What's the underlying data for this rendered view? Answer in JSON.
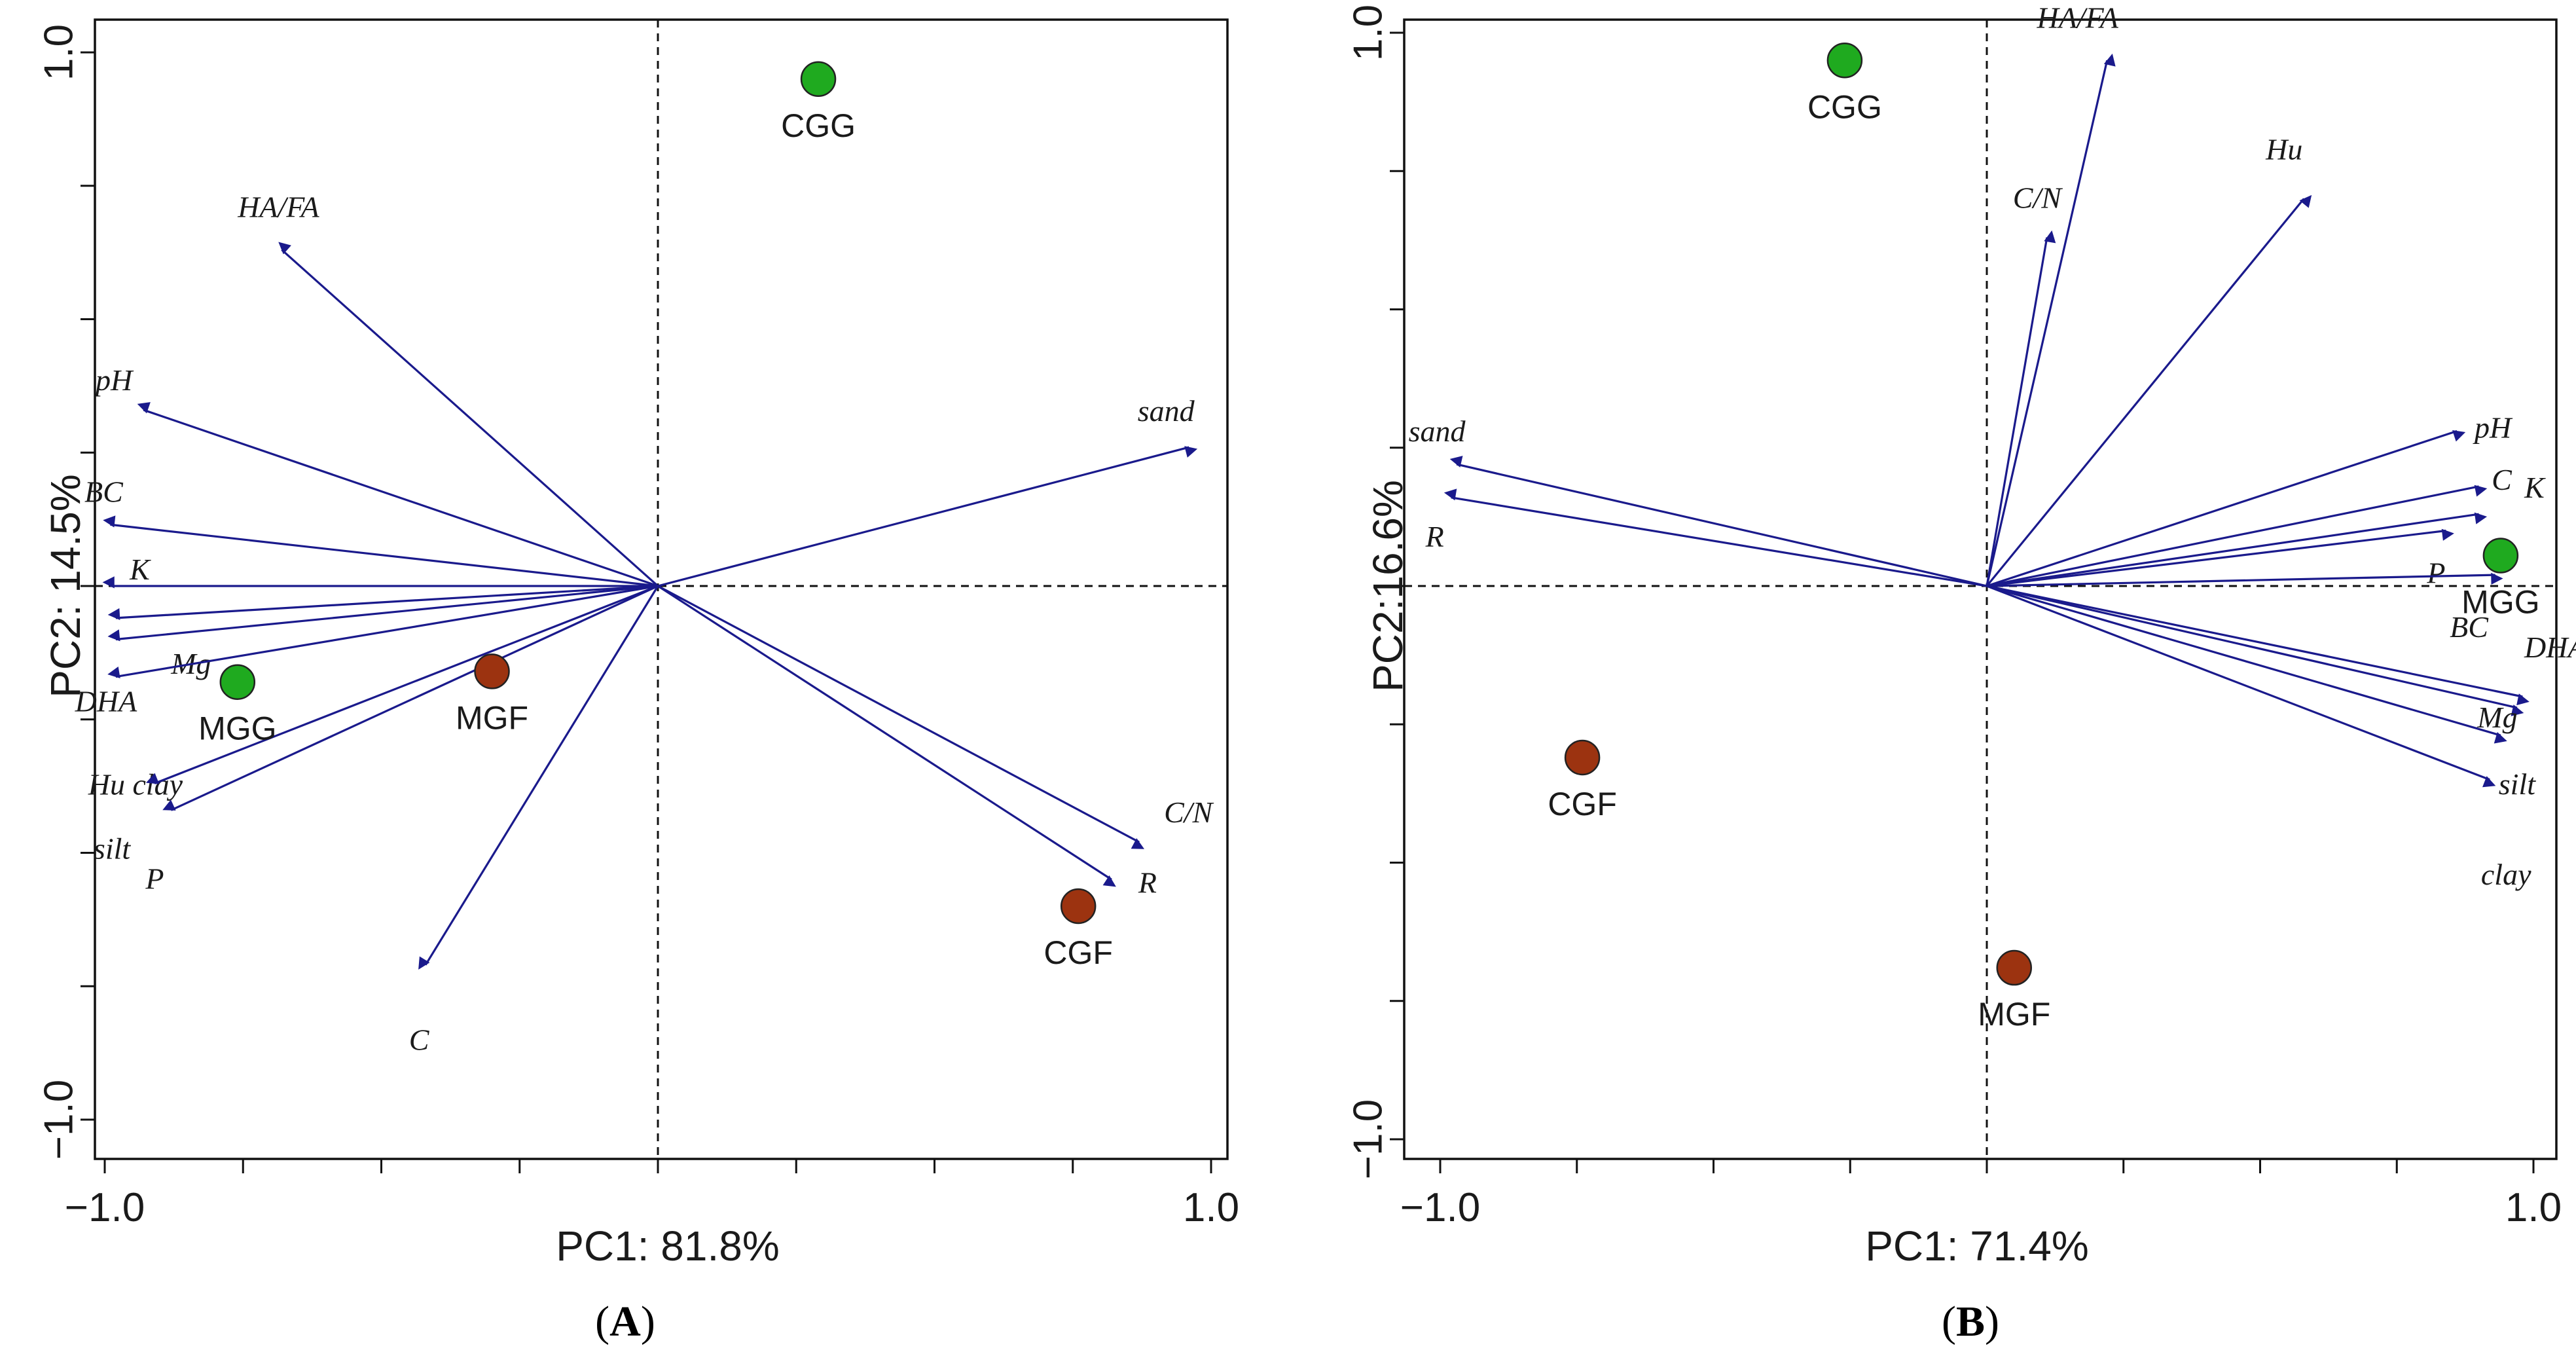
{
  "colors": {
    "arrow": "#1a1a8c",
    "site_green": "#1faa1f",
    "site_brown": "#9c3310",
    "frame": "#111111"
  },
  "chart_data": [
    {
      "type": "scatter",
      "subtype": "pca-biplot",
      "panel": "A",
      "xlabel": "PC1: 81.8%",
      "ylabel": "PC2: 14.5%",
      "xlim": [
        -1.0,
        1.0
      ],
      "ylim": [
        -1.0,
        1.0
      ],
      "x_ticks": [
        -1.0,
        1.0
      ],
      "y_ticks": [
        -1.0,
        1.0
      ],
      "x_tick_labels": [
        "−1.0",
        "1.0"
      ],
      "y_tick_labels": [
        "−1.0",
        "1.0"
      ],
      "vectors": [
        {
          "name": "HA/FA",
          "x": -0.68,
          "y": 0.63
        },
        {
          "name": "pH",
          "x": -0.93,
          "y": 0.33
        },
        {
          "name": "BC",
          "x": -0.99,
          "y": 0.115
        },
        {
          "name": "K",
          "x": -0.99,
          "y": 0.0
        },
        {
          "name": "Mg",
          "x": -0.98,
          "y": -0.06
        },
        {
          "name": "DHA",
          "x": -0.98,
          "y": -0.1
        },
        {
          "name": "Hu clay",
          "x": -0.98,
          "y": -0.17
        },
        {
          "name": "silt",
          "x": -0.91,
          "y": -0.37
        },
        {
          "name": "P",
          "x": -0.88,
          "y": -0.42
        },
        {
          "name": "C",
          "x": -0.42,
          "y": -0.71
        },
        {
          "name": "sand",
          "x": 0.96,
          "y": 0.26
        },
        {
          "name": "C/N",
          "x": 0.87,
          "y": -0.48
        },
        {
          "name": "R",
          "x": 0.82,
          "y": -0.55
        }
      ],
      "sites": [
        {
          "name": "CGG",
          "x": 0.29,
          "y": 0.95,
          "group": "green"
        },
        {
          "name": "MGG",
          "x": -0.76,
          "y": -0.18,
          "group": "green"
        },
        {
          "name": "MGF",
          "x": -0.3,
          "y": -0.16,
          "group": "brown"
        },
        {
          "name": "CGF",
          "x": 0.76,
          "y": -0.6,
          "group": "brown"
        }
      ],
      "panel_label": {
        "open": "(",
        "letter": "A",
        "close": ")"
      }
    },
    {
      "type": "scatter",
      "subtype": "pca-biplot",
      "panel": "B",
      "xlabel": "PC1: 71.4%",
      "ylabel": "PC2:16.6%",
      "xlim": [
        -1.0,
        1.0
      ],
      "ylim": [
        -1.0,
        1.0
      ],
      "x_ticks": [
        -1.0,
        1.0
      ],
      "y_ticks": [
        -1.0,
        1.0
      ],
      "x_tick_labels": [
        "−1.0",
        "1.0"
      ],
      "y_tick_labels": [
        "−1.0",
        "1.0"
      ],
      "vectors": [
        {
          "name": "HA/FA",
          "x": 0.22,
          "y": 0.95
        },
        {
          "name": "Hu",
          "x": 0.58,
          "y": 0.7
        },
        {
          "name": "C/N",
          "x": 0.11,
          "y": 0.63
        },
        {
          "name": "sand",
          "x": -0.97,
          "y": 0.22
        },
        {
          "name": "R",
          "x": -0.98,
          "y": 0.16
        },
        {
          "name": "pH",
          "x": 0.86,
          "y": 0.28
        },
        {
          "name": "C",
          "x": 0.9,
          "y": 0.18
        },
        {
          "name": "K",
          "x": 0.9,
          "y": 0.13
        },
        {
          "name": "P",
          "x": 0.84,
          "y": 0.1
        },
        {
          "name": "BC",
          "x": 0.93,
          "y": 0.02
        },
        {
          "name": "DHA",
          "x": 0.98,
          "y": -0.2
        },
        {
          "name": "Mg",
          "x": 0.97,
          "y": -0.22
        },
        {
          "name": "silt",
          "x": 0.94,
          "y": -0.27
        },
        {
          "name": "clay",
          "x": 0.92,
          "y": -0.35
        }
      ],
      "sites": [
        {
          "name": "CGG",
          "x": -0.26,
          "y": 0.95,
          "group": "green"
        },
        {
          "name": "MGG",
          "x": 0.94,
          "y": 0.055,
          "group": "green"
        },
        {
          "name": "CGF",
          "x": -0.74,
          "y": -0.31,
          "group": "brown"
        },
        {
          "name": "MGF",
          "x": 0.05,
          "y": -0.69,
          "group": "brown"
        }
      ],
      "panel_label": {
        "open": "(",
        "letter": "B",
        "close": ")"
      }
    }
  ]
}
